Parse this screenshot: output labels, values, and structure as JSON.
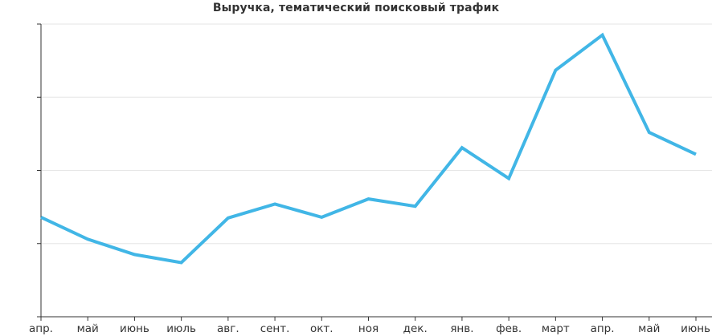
{
  "chart_data": {
    "type": "line",
    "title": "Выручка, тематический поисковый трафик",
    "xlabel": "",
    "ylabel": "",
    "categories": [
      "апр.",
      "май",
      "июнь",
      "июль",
      "авг.",
      "сент.",
      "окт.",
      "ноя",
      "дек.",
      "янв.",
      "фев.",
      "март",
      "апр.",
      "май",
      "июнь"
    ],
    "series": [
      {
        "values": [
          1.36,
          1.06,
          0.85,
          0.74,
          1.35,
          1.54,
          1.36,
          1.61,
          1.51,
          2.31,
          1.89,
          3.37,
          3.85,
          2.52,
          2.22
        ]
      }
    ],
    "ylim": [
      0,
      4
    ],
    "yticks": [
      0,
      1,
      2,
      3,
      4
    ],
    "ytick_labels_shown": false,
    "grid": true,
    "colors": {
      "line": "#41B6E6",
      "grid": "#E6E6E6",
      "axis": "#333333"
    }
  }
}
